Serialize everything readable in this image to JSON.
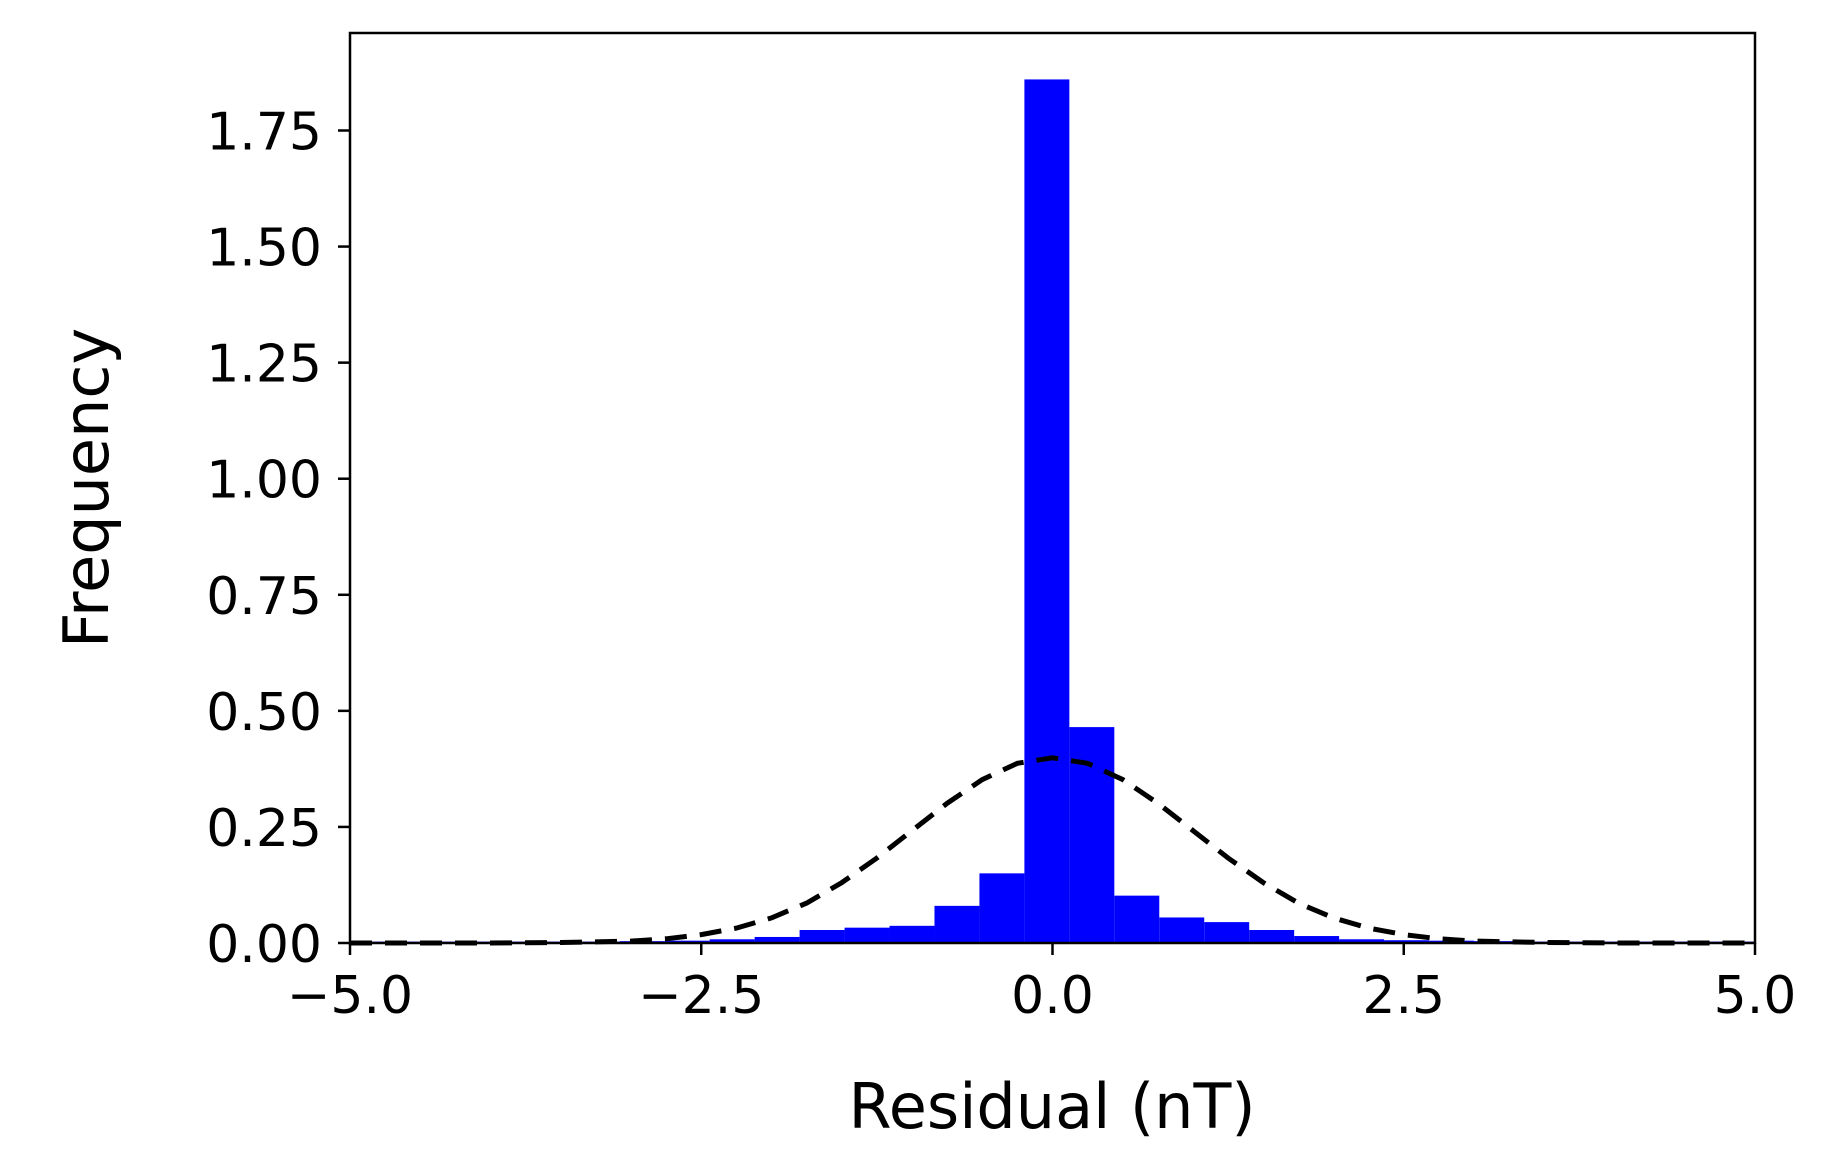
{
  "chart_data": {
    "type": "bar",
    "xlabel": "Residual (nT)",
    "ylabel": "Frequency",
    "xlim": [
      -5.0,
      5.0
    ],
    "ylim": [
      0,
      1.96
    ],
    "x_ticks": [
      -5.0,
      -2.5,
      0.0,
      2.5,
      5.0
    ],
    "x_tick_labels": [
      "−5.0",
      "−2.5",
      "0.0",
      "2.5",
      "5.0"
    ],
    "y_ticks": [
      0.0,
      0.25,
      0.5,
      0.75,
      1.0,
      1.25,
      1.5,
      1.75
    ],
    "y_tick_labels": [
      "0.00",
      "0.25",
      "0.50",
      "0.75",
      "1.00",
      "1.25",
      "1.50",
      "1.75"
    ],
    "grid": false,
    "legend": "none",
    "series": [
      {
        "type": "histogram",
        "color": "#0000ff",
        "bin_edges": [
          -5.0,
          -4.68,
          -4.36,
          -4.04,
          -3.72,
          -3.4,
          -3.08,
          -2.76,
          -2.44,
          -2.12,
          -1.8,
          -1.48,
          -1.16,
          -0.84,
          -0.52,
          -0.2,
          0.12,
          0.44,
          0.76,
          1.08,
          1.4,
          1.72,
          2.04,
          2.36,
          2.68,
          3.0,
          3.32,
          3.64,
          3.96,
          4.28,
          4.6,
          5.0
        ],
        "values": [
          0.003,
          0.003,
          0.003,
          0.003,
          0.003,
          0.003,
          0.004,
          0.005,
          0.008,
          0.013,
          0.028,
          0.033,
          0.037,
          0.08,
          0.15,
          1.86,
          0.465,
          0.102,
          0.055,
          0.045,
          0.028,
          0.015,
          0.008,
          0.006,
          0.005,
          0.004,
          0.003,
          0.003,
          0.003,
          0.003,
          0.003
        ]
      },
      {
        "type": "line",
        "style": "dashed",
        "color": "#000000",
        "x": [
          -5.0,
          -4.5,
          -4.0,
          -3.5,
          -3.0,
          -2.75,
          -2.5,
          -2.25,
          -2.0,
          -1.75,
          -1.5,
          -1.25,
          -1.0,
          -0.75,
          -0.5,
          -0.25,
          0.0,
          0.25,
          0.5,
          0.75,
          1.0,
          1.25,
          1.5,
          1.75,
          2.0,
          2.25,
          2.5,
          2.75,
          3.0,
          3.5,
          4.0,
          4.5,
          5.0
        ],
        "y": [
          0.0,
          0.0,
          0.0,
          0.001,
          0.004,
          0.009,
          0.018,
          0.032,
          0.054,
          0.086,
          0.13,
          0.183,
          0.242,
          0.301,
          0.352,
          0.387,
          0.399,
          0.387,
          0.352,
          0.301,
          0.242,
          0.183,
          0.13,
          0.086,
          0.054,
          0.032,
          0.018,
          0.009,
          0.004,
          0.001,
          0.0,
          0.0,
          0.0
        ]
      }
    ]
  }
}
